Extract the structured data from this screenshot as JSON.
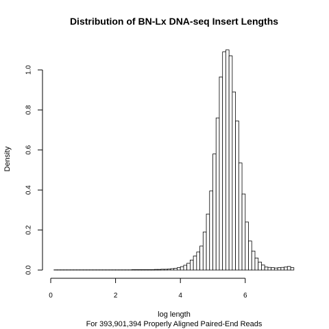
{
  "chart_data": {
    "type": "bar",
    "title": "Distribution of BN-Lx DNA-seq Insert Lengths",
    "xlabel": "log length",
    "subtitle": "For 393,901,394 Properly Aligned Paired-End Reads",
    "ylabel": "Density",
    "xlim": [
      0,
      7.6
    ],
    "ylim": [
      0,
      1.1
    ],
    "x_ticks": [
      0,
      2,
      4,
      6
    ],
    "y_ticks": [
      "0.0",
      "0.2",
      "0.4",
      "0.6",
      "0.8",
      "1.0"
    ],
    "bin_width": 0.1,
    "bin_start": 0.0,
    "values": [
      0,
      0.001,
      0.001,
      0.001,
      0.001,
      0.001,
      0.001,
      0.001,
      0.001,
      0.001,
      0.001,
      0.001,
      0.001,
      0.001,
      0.001,
      0.001,
      0.001,
      0.001,
      0.001,
      0.001,
      0.001,
      0.001,
      0.001,
      0.001,
      0.001,
      0.002,
      0.002,
      0.002,
      0.002,
      0.002,
      0.002,
      0.002,
      0.003,
      0.003,
      0.004,
      0.004,
      0.005,
      0.007,
      0.009,
      0.012,
      0.017,
      0.024,
      0.034,
      0.05,
      0.07,
      0.09,
      0.12,
      0.19,
      0.28,
      0.395,
      0.58,
      0.76,
      0.965,
      1.09,
      1.1,
      1.07,
      0.89,
      0.745,
      0.535,
      0.38,
      0.24,
      0.145,
      0.095,
      0.06,
      0.04,
      0.025,
      0.015,
      0.013,
      0.012,
      0.01,
      0.012,
      0.013,
      0.015,
      0.018,
      0.012
    ],
    "grid": false,
    "colors": {
      "bar_fill": "#ffffff",
      "bar_stroke": "#000000"
    }
  }
}
